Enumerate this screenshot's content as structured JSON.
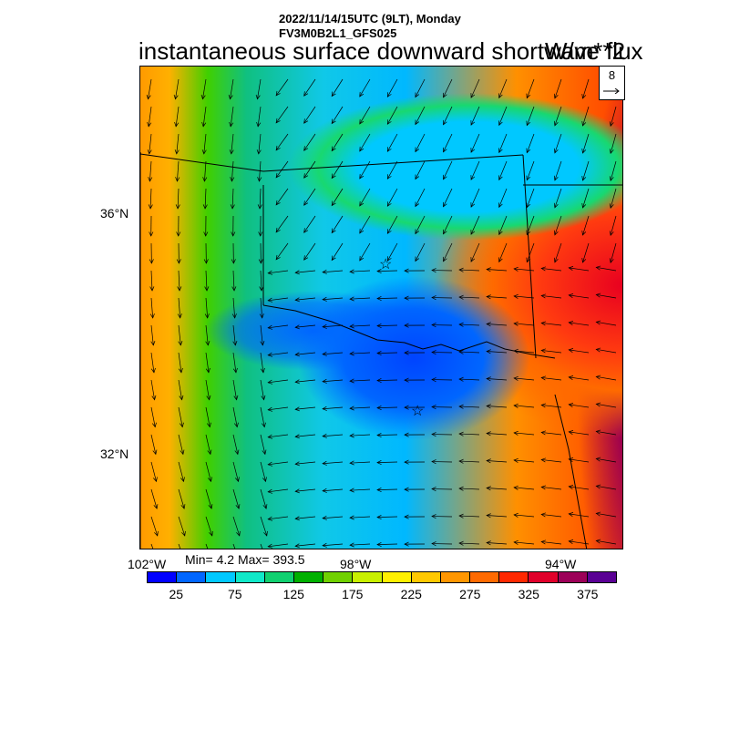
{
  "header": {
    "timestamp": "2022/11/14/15UTC (9LT), Monday",
    "model": "FV3M0B2L1_GFS025"
  },
  "title": "instantaneous surface downward shortwave flux",
  "units": "W/m**2",
  "vector_reference": {
    "value": "8",
    "icon": "arrow-right-icon"
  },
  "axes": {
    "lat_labels": [
      "36°N",
      "32°N"
    ],
    "lon_labels": [
      "102°W",
      "98°W",
      "94°W"
    ]
  },
  "stats": "Min= 4.2 Max= 393.5",
  "colorbar": {
    "colors": [
      "#0000ff",
      "#0066ff",
      "#00c8ff",
      "#10e8c8",
      "#10d070",
      "#00b000",
      "#70d000",
      "#c8f000",
      "#fff000",
      "#ffc800",
      "#ff9600",
      "#ff6a00",
      "#ff2800",
      "#e0002a",
      "#9c0058",
      "#5a0094"
    ],
    "labels": [
      "25",
      "75",
      "125",
      "175",
      "225",
      "275",
      "325",
      "375"
    ]
  },
  "markers": [
    "star-icon",
    "star-icon"
  ]
}
